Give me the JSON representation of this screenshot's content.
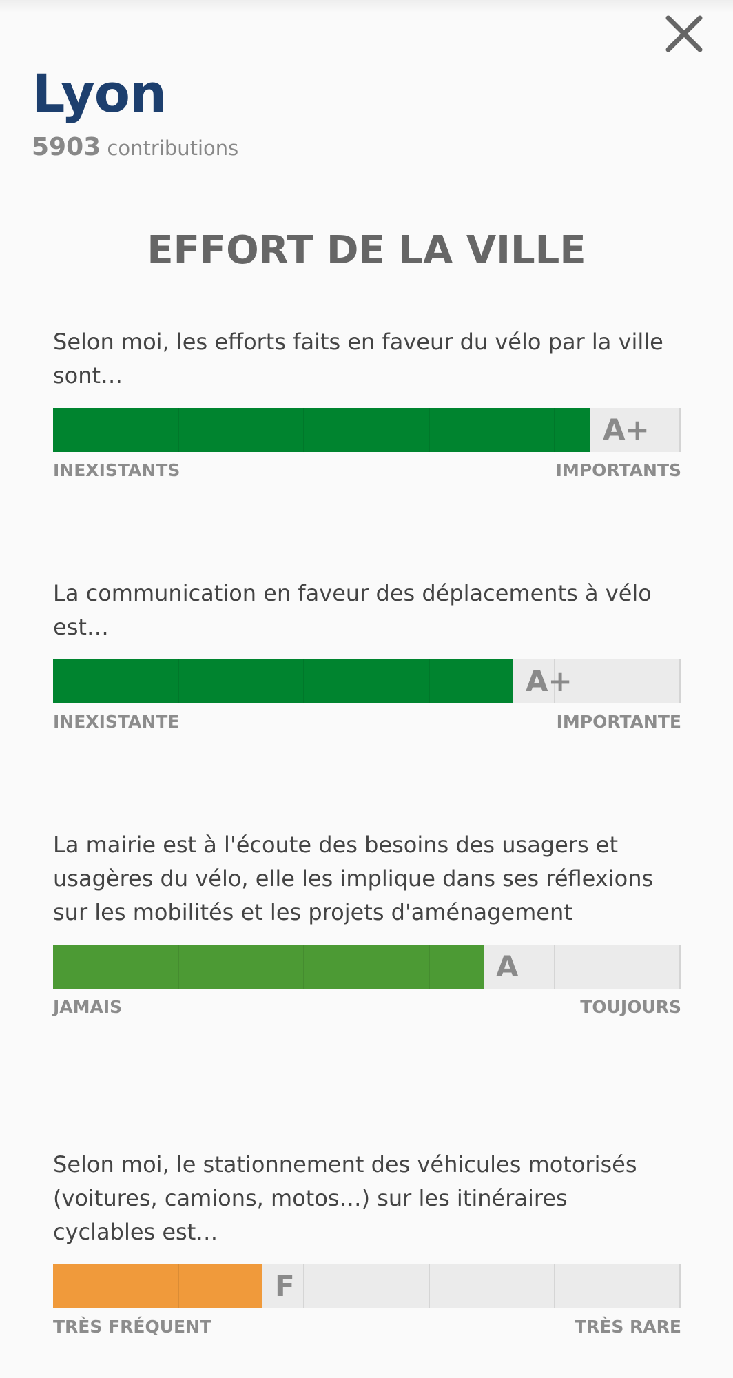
{
  "header": {
    "city": "Lyon",
    "contributions_count": "5903",
    "contributions_label": "contributions",
    "close_icon": "close-icon"
  },
  "section_title": "EFFORT DE LA VILLE",
  "questions": [
    {
      "text": "Selon moi, les efforts faits en faveur du vélo par la ville sont…",
      "grade": "A+",
      "score_fraction": 0.855,
      "color": "#00842f",
      "min_label": "INEXISTANTS",
      "max_label": "IMPORTANTS"
    },
    {
      "text": "La communication en faveur des déplacements à vélo est…",
      "grade": "A+",
      "score_fraction": 0.733,
      "color": "#00842f",
      "min_label": "INEXISTANTE",
      "max_label": "IMPORTANTE"
    },
    {
      "text": "La mairie est à l'écoute des besoins des usagers et usagères du vélo, elle les implique dans ses réflexions sur les mobilités et les projets d'aménagement",
      "grade": "A",
      "score_fraction": 0.685,
      "color": "#4c9a34",
      "min_label": "JAMAIS",
      "max_label": "TOUJOURS"
    },
    {
      "text": "Selon moi, le stationnement des véhicules motorisés (voitures, camions, motos…) sur les itinéraires cyclables est…",
      "grade": "F",
      "score_fraction": 0.333,
      "color": "#f09a3b",
      "min_label": "TRÈS FRÉQUENT",
      "max_label": "TRÈS RARE"
    }
  ]
}
